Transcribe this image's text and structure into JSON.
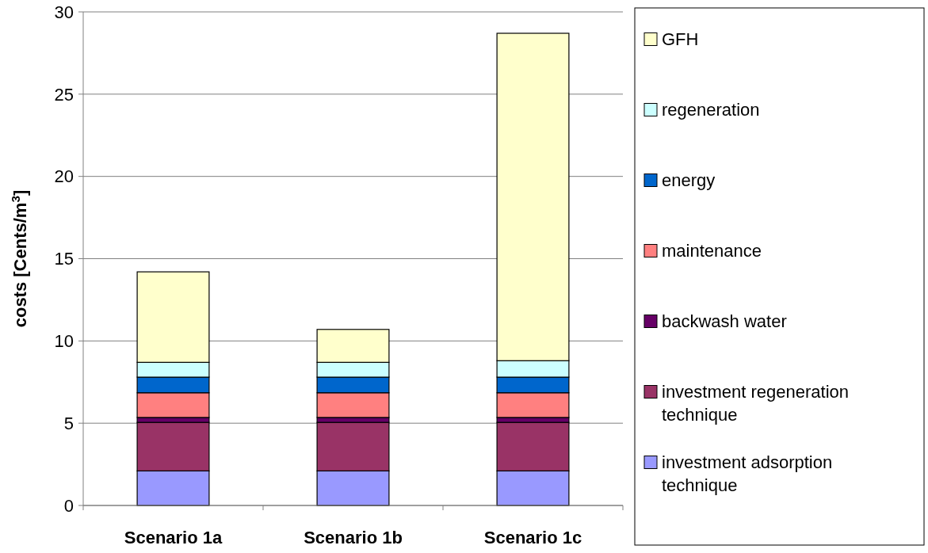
{
  "chart_data": {
    "type": "bar",
    "stacked": true,
    "ylabel": "costs [Cents/m$^{3}$]",
    "categories": [
      "Scenario 1a",
      "Scenario 1b",
      "Scenario 1c"
    ],
    "series": [
      {
        "name": "investment adsorption technique",
        "color": "#9999ff",
        "values": [
          2.1,
          2.1,
          2.1
        ]
      },
      {
        "name": "investment regeneration technique",
        "color": "#993366",
        "values": [
          2.95,
          2.95,
          2.95
        ]
      },
      {
        "name": "backwash water",
        "color": "#660066",
        "values": [
          0.3,
          0.3,
          0.3
        ]
      },
      {
        "name": "maintenance",
        "color": "#ff8080",
        "values": [
          1.5,
          1.5,
          1.5
        ]
      },
      {
        "name": "energy",
        "color": "#0066cc",
        "values": [
          0.95,
          0.95,
          0.95
        ]
      },
      {
        "name": "regeneration",
        "color": "#ccffff",
        "values": [
          0.9,
          0.9,
          1.0
        ]
      },
      {
        "name": "GFH",
        "color": "#ffffcc",
        "values": [
          5.5,
          2.0,
          19.9
        ]
      }
    ],
    "ylim": [
      0,
      30
    ],
    "yticks": [
      0,
      5,
      10,
      15,
      20,
      25,
      30
    ],
    "grid": "y",
    "legend": "right"
  }
}
